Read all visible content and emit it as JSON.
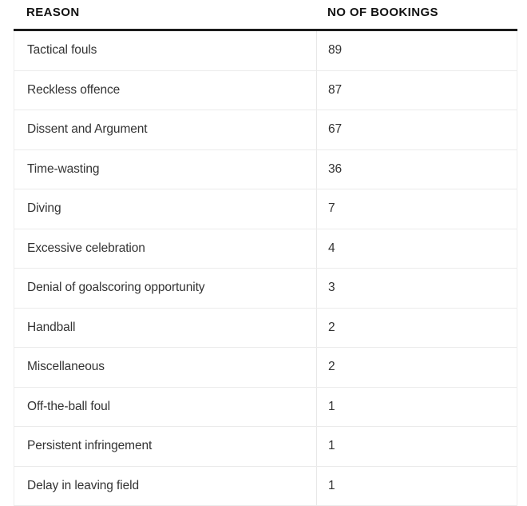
{
  "chart_data": {
    "type": "table",
    "columns": [
      "REASON",
      "NO OF BOOKINGS"
    ],
    "rows": [
      [
        "Tactical fouls",
        89
      ],
      [
        "Reckless offence",
        87
      ],
      [
        "Dissent and Argument",
        67
      ],
      [
        "Time-wasting",
        36
      ],
      [
        "Diving",
        7
      ],
      [
        "Excessive celebration",
        4
      ],
      [
        "Denial of goalscoring opportunity",
        3
      ],
      [
        "Handball",
        2
      ],
      [
        "Miscellaneous",
        2
      ],
      [
        "Off-the-ball foul",
        1
      ],
      [
        "Persistent infringement",
        1
      ],
      [
        "Delay in leaving field",
        1
      ]
    ],
    "title": "",
    "layout": {
      "grid": "horizontal-row-separators",
      "column_divider": true
    }
  },
  "colors": {
    "background": "#ffffff",
    "header_text": "#121212",
    "header_rule": "#1c1c1c",
    "body_text": "#333333",
    "row_divider": "#ebebeb",
    "column_divider": "#e7e7e7"
  }
}
